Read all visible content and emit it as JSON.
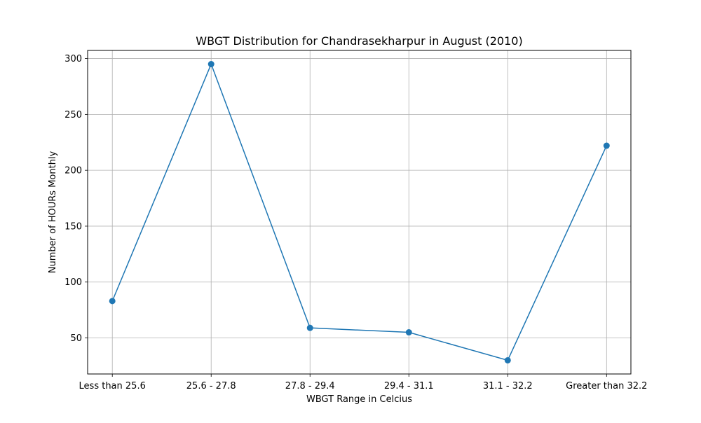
{
  "chart_data": {
    "type": "line",
    "title": "WBGT Distribution for Chandrasekharpur in August (2010)",
    "xlabel": "WBGT Range in Celcius",
    "ylabel": "Number of HOURs Monthly",
    "categories": [
      "Less than 25.6",
      "25.6 - 27.8",
      "27.8 - 29.4",
      "29.4 - 31.1",
      "31.1 - 32.2",
      "Greater than 32.2"
    ],
    "series": [
      {
        "values": [
          83,
          295,
          59,
          55,
          30,
          222
        ]
      }
    ],
    "ylim": [
      17.75,
      307.25
    ],
    "yticks": [
      50,
      100,
      150,
      200,
      250,
      300
    ],
    "grid": true,
    "legend": "none",
    "colors": {
      "line": "#1f77b4",
      "grid": "#b0b0b0",
      "axes": "#000000"
    }
  }
}
